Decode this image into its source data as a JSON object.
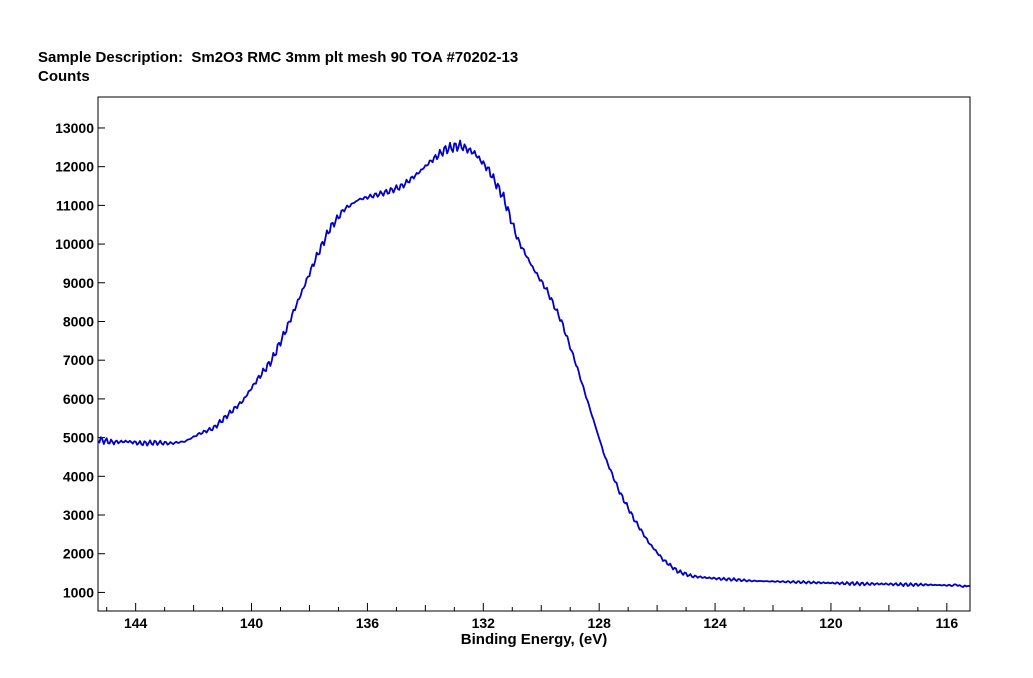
{
  "chart_data": {
    "type": "line",
    "title": "Sample Description:  Sm2O3 RMC 3mm plt mesh 90 TOA #70202-13",
    "ylabel": "Counts",
    "xlabel": "Binding Energy, (eV)",
    "xlim": [
      145.3,
      115.2
    ],
    "ylim": [
      520,
      13800
    ],
    "x_reversed": true,
    "grid": false,
    "x_ticks": [
      144,
      140,
      136,
      132,
      128,
      124,
      120,
      116
    ],
    "y_ticks": [
      1000,
      2000,
      3000,
      4000,
      5000,
      6000,
      7000,
      8000,
      9000,
      10000,
      11000,
      12000,
      13000
    ],
    "line_color": "#0000cc",
    "series": [
      {
        "x": [
          145.3,
          144.8,
          144.3,
          143.8,
          143.3,
          142.8,
          142.3,
          141.8,
          141.3,
          140.8,
          140.3,
          139.8,
          139.3,
          138.8,
          138.3,
          137.8,
          137.3,
          136.8,
          136.3,
          135.8,
          135.3,
          134.8,
          134.3,
          133.8,
          133.3,
          132.8,
          132.3,
          131.8,
          131.3,
          130.8,
          130.3,
          129.8,
          129.3,
          128.8,
          128.3,
          127.8,
          127.3,
          126.8,
          126.3,
          125.8,
          125.3,
          124.8,
          124.3,
          123.8,
          123.3,
          122.8,
          122.3,
          121.8,
          121.3,
          120.8,
          120.3,
          119.8,
          119.3,
          118.8,
          118.3,
          117.8,
          117.3,
          116.8,
          116.3,
          115.8,
          115.2
        ],
        "y": [
          4950,
          4880,
          4900,
          4850,
          4870,
          4850,
          4900,
          5100,
          5250,
          5600,
          5950,
          6500,
          7000,
          7800,
          8700,
          9600,
          10400,
          10900,
          11150,
          11250,
          11350,
          11500,
          11800,
          12150,
          12450,
          12550,
          12350,
          11900,
          11200,
          10100,
          9400,
          8800,
          8000,
          6900,
          5700,
          4500,
          3600,
          2900,
          2300,
          1850,
          1550,
          1420,
          1380,
          1350,
          1330,
          1300,
          1290,
          1280,
          1270,
          1260,
          1250,
          1240,
          1230,
          1220,
          1220,
          1210,
          1200,
          1200,
          1190,
          1180,
          1170
        ]
      }
    ]
  }
}
